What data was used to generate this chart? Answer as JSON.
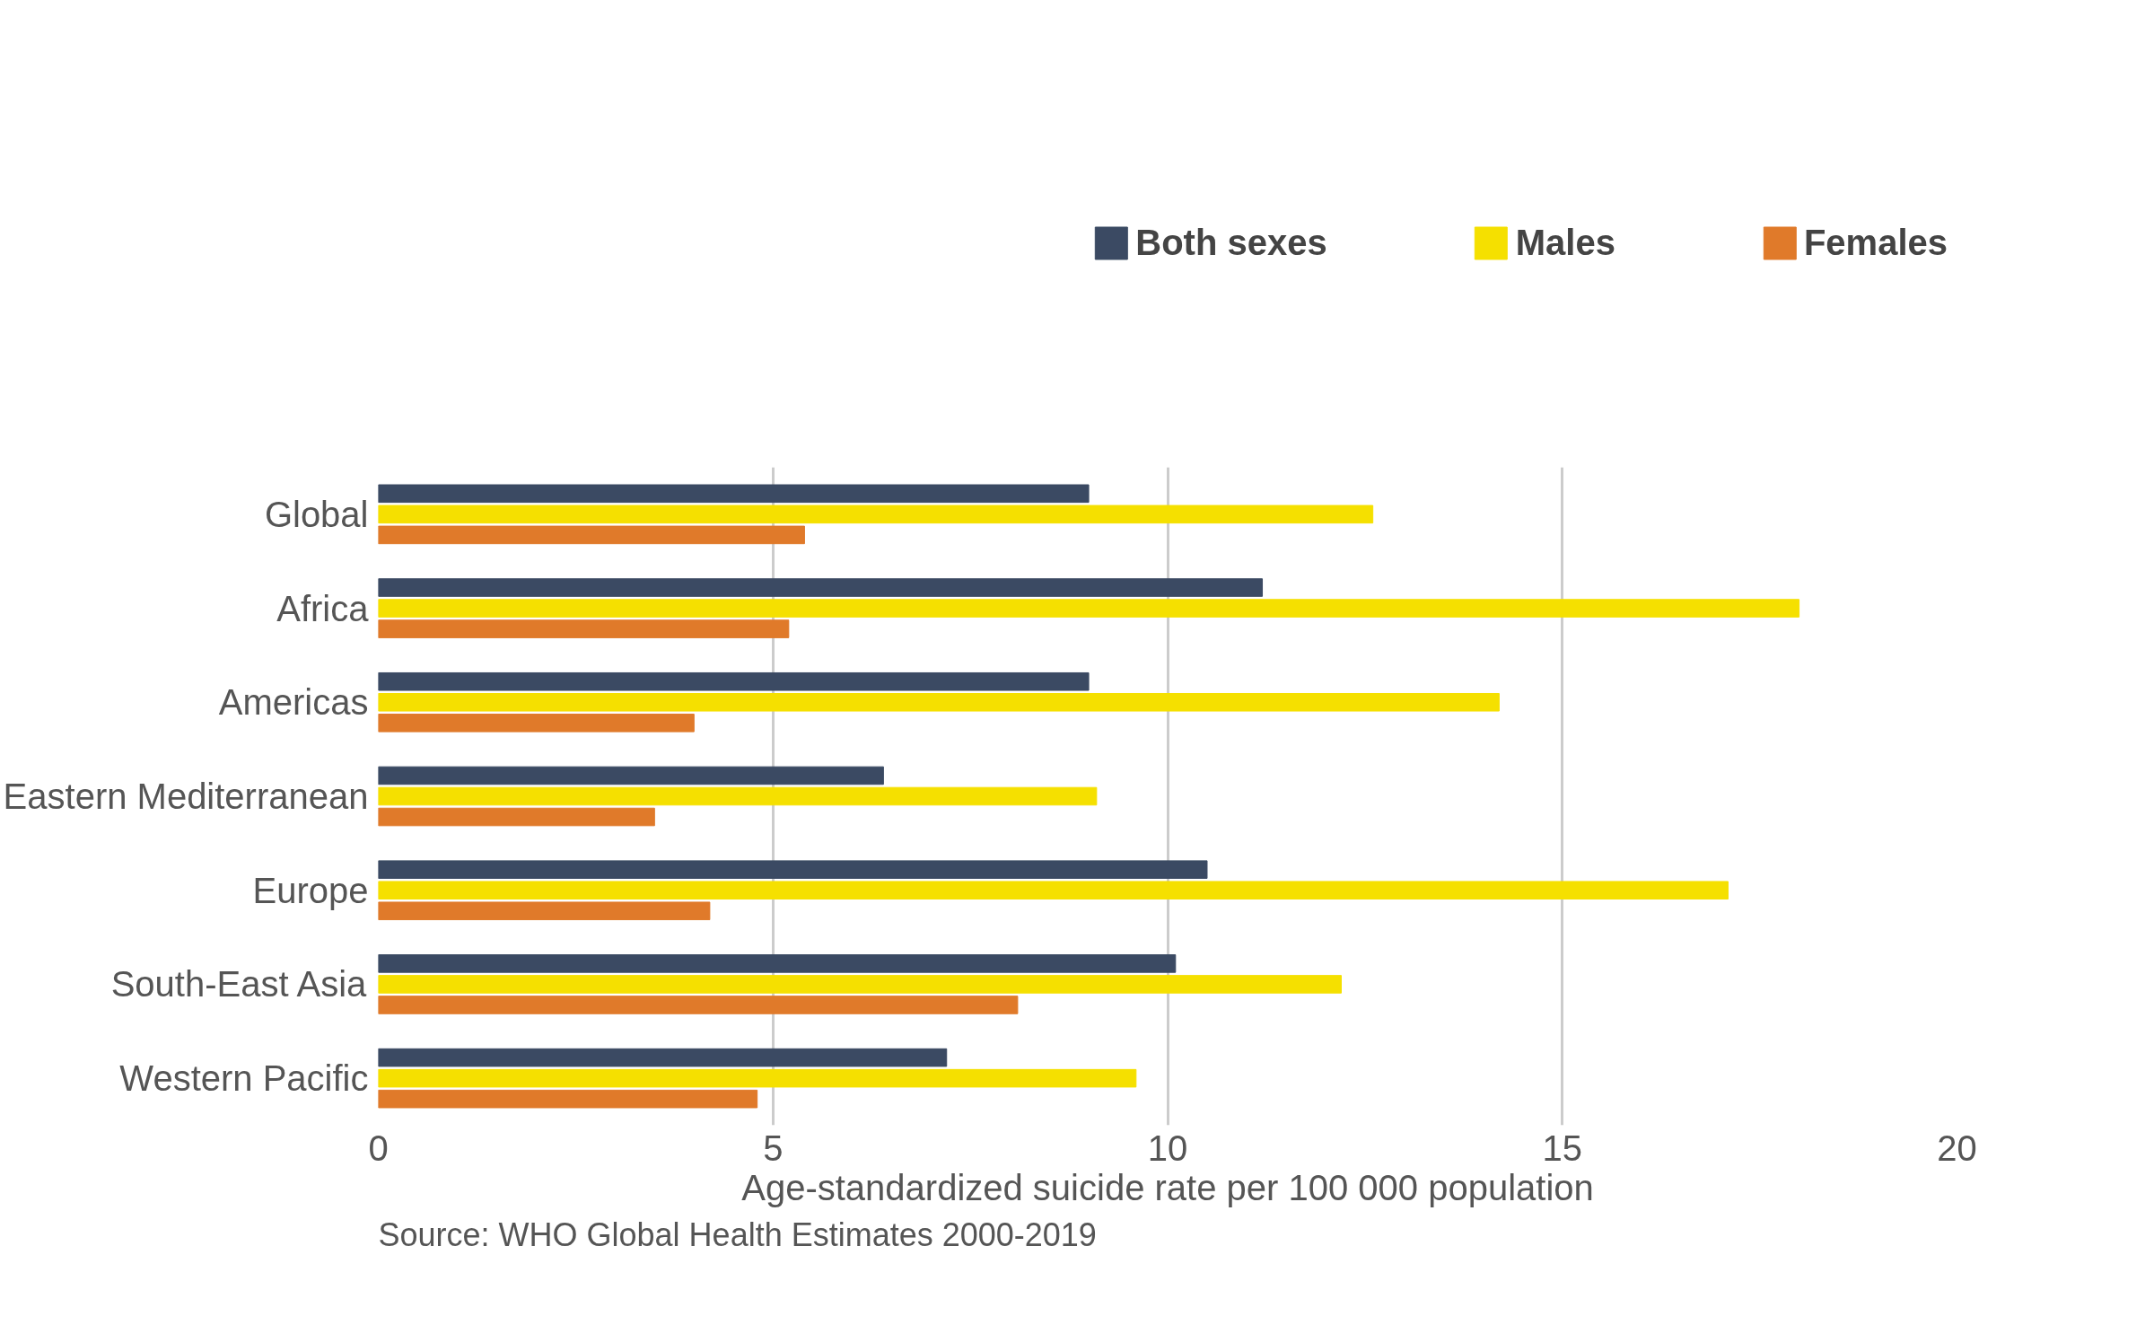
{
  "chart_data": {
    "type": "bar",
    "orientation": "horizontal",
    "xlabel": "Age-standardized suicide rate per 100 000 population",
    "categories": [
      "Global",
      "Africa",
      "Americas",
      "Eastern Mediterranean",
      "Europe",
      "South-East Asia",
      "Western Pacific"
    ],
    "series": [
      {
        "name": "Both sexes",
        "color": "#3b4a63",
        "values": [
          9.0,
          11.2,
          9.0,
          6.4,
          10.5,
          10.1,
          7.2
        ]
      },
      {
        "name": "Males",
        "color": "#f5e000",
        "values": [
          12.6,
          18.0,
          14.2,
          9.1,
          17.1,
          12.2,
          9.6
        ]
      },
      {
        "name": "Females",
        "color": "#e07a2a",
        "values": [
          5.4,
          5.2,
          4.0,
          3.5,
          4.2,
          8.1,
          4.8
        ]
      }
    ],
    "xlim": [
      0,
      20
    ],
    "xticks": [
      0,
      5,
      10,
      15,
      20
    ],
    "grid": "x",
    "legend": "top",
    "annotations": [
      "Source: WHO Global Health Estimates 2000-2019"
    ]
  }
}
